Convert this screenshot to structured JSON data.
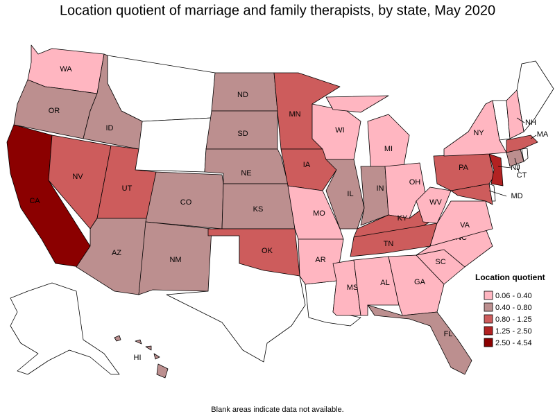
{
  "title": "Location quotient of marriage and family therapists, by state, May 2020",
  "legend": {
    "title": "Location quotient",
    "classes": [
      {
        "label": "0.06 - 0.40",
        "color": "#ffb6c1"
      },
      {
        "label": "0.40 - 0.80",
        "color": "#bc8f8f"
      },
      {
        "label": "0.80 - 1.25",
        "color": "#cd5c5c"
      },
      {
        "label": "1.25 - 2.50",
        "color": "#b22222"
      },
      {
        "label": "2.50 - 4.54",
        "color": "#8b0000"
      }
    ]
  },
  "states": [
    {
      "label": "WA",
      "class": 0
    },
    {
      "label": "OR",
      "class": 1
    },
    {
      "label": "CA",
      "class": 4
    },
    {
      "label": "NV",
      "class": 2
    },
    {
      "label": "ID",
      "class": 1
    },
    {
      "label": "UT",
      "class": 2
    },
    {
      "label": "AZ",
      "class": 1
    },
    {
      "label": "CO",
      "class": 1
    },
    {
      "label": "NM",
      "class": 1
    },
    {
      "label": "ND",
      "class": 1
    },
    {
      "label": "SD",
      "class": 1
    },
    {
      "label": "NE",
      "class": 1
    },
    {
      "label": "KS",
      "class": 1
    },
    {
      "label": "OK",
      "class": 2
    },
    {
      "label": "MN",
      "class": 2
    },
    {
      "label": "IA",
      "class": 2
    },
    {
      "label": "MO",
      "class": 0
    },
    {
      "label": "AR",
      "class": 0
    },
    {
      "label": "WI",
      "class": 0
    },
    {
      "label": "IL",
      "class": 1
    },
    {
      "label": "MI",
      "class": 0
    },
    {
      "label": "IN",
      "class": 1
    },
    {
      "label": "OH",
      "class": 0
    },
    {
      "label": "KY",
      "class": 2
    },
    {
      "label": "TN",
      "class": 2
    },
    {
      "label": "MS",
      "class": 0
    },
    {
      "label": "AL",
      "class": 0
    },
    {
      "label": "GA",
      "class": 0
    },
    {
      "label": "FL",
      "class": 1
    },
    {
      "label": "SC",
      "class": 0
    },
    {
      "label": "NC",
      "class": 0
    },
    {
      "label": "VA",
      "class": 0
    },
    {
      "label": "WV",
      "class": 0
    },
    {
      "label": "MD",
      "class": 2
    },
    {
      "label": "PA",
      "class": 2
    },
    {
      "label": "NJ",
      "class": 3
    },
    {
      "label": "NY",
      "class": 0
    },
    {
      "label": "CT",
      "class": 1
    },
    {
      "label": "MA",
      "class": 2
    },
    {
      "label": "NH",
      "class": 0
    },
    {
      "label": "HI",
      "class": 1
    }
  ],
  "note": "Blank areas indicate data not available."
}
